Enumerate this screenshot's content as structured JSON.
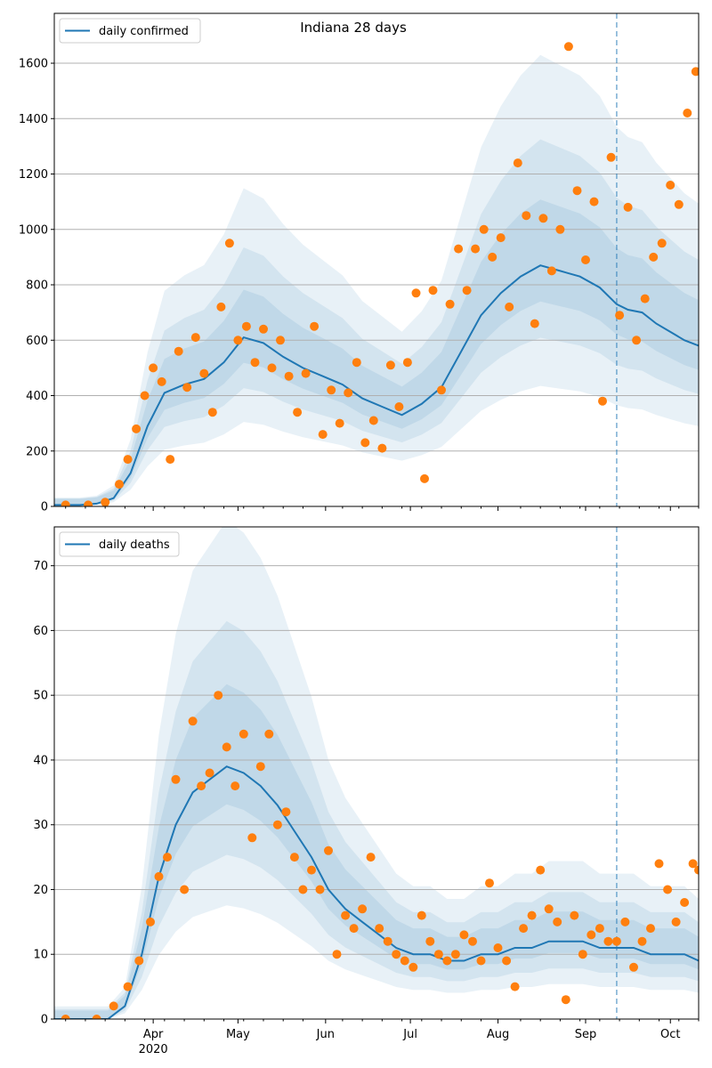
{
  "chart_data": [
    {
      "type": "line",
      "title": "Indiana 28 days",
      "xlabel": "",
      "ylabel": "",
      "ylim": [
        0,
        1780
      ],
      "y_ticks": [
        0,
        200,
        400,
        600,
        800,
        1000,
        1200,
        1400,
        1600
      ],
      "grid": "horizontal",
      "legend_placement": "top-left",
      "forecast_start": "2020-09-12",
      "band_color": "#1f77b4",
      "series": [
        {
          "name": "daily confirmed",
          "kind": "line",
          "color": "#1f77b4",
          "x": [
            "2020-02-26",
            "2020-03-06",
            "2020-03-12",
            "2020-03-18",
            "2020-03-24",
            "2020-03-30",
            "2020-04-05",
            "2020-04-12",
            "2020-04-19",
            "2020-04-26",
            "2020-05-03",
            "2020-05-10",
            "2020-05-17",
            "2020-05-24",
            "2020-05-31",
            "2020-06-07",
            "2020-06-14",
            "2020-06-21",
            "2020-06-28",
            "2020-07-05",
            "2020-07-12",
            "2020-07-19",
            "2020-07-26",
            "2020-08-02",
            "2020-08-09",
            "2020-08-16",
            "2020-08-23",
            "2020-08-30",
            "2020-09-06",
            "2020-09-12",
            "2020-09-16",
            "2020-09-21",
            "2020-09-26",
            "2020-10-01",
            "2020-10-06",
            "2020-10-11"
          ],
          "y": [
            5,
            5,
            10,
            30,
            120,
            290,
            410,
            440,
            460,
            520,
            610,
            590,
            540,
            500,
            470,
            440,
            390,
            360,
            330,
            370,
            430,
            560,
            690,
            770,
            830,
            870,
            850,
            830,
            790,
            730,
            710,
            700,
            660,
            630,
            600,
            580
          ]
        },
        {
          "name": "",
          "kind": "scatter",
          "color": "#ff7f0e",
          "x": [
            "2020-03-01",
            "2020-03-09",
            "2020-03-15",
            "2020-03-20",
            "2020-03-23",
            "2020-03-26",
            "2020-03-29",
            "2020-04-01",
            "2020-04-04",
            "2020-04-07",
            "2020-04-10",
            "2020-04-13",
            "2020-04-16",
            "2020-04-19",
            "2020-04-22",
            "2020-04-25",
            "2020-04-28",
            "2020-05-01",
            "2020-05-04",
            "2020-05-07",
            "2020-05-10",
            "2020-05-13",
            "2020-05-16",
            "2020-05-19",
            "2020-05-22",
            "2020-05-25",
            "2020-05-28",
            "2020-05-31",
            "2020-06-03",
            "2020-06-06",
            "2020-06-09",
            "2020-06-12",
            "2020-06-15",
            "2020-06-18",
            "2020-06-21",
            "2020-06-24",
            "2020-06-27",
            "2020-06-30",
            "2020-07-03",
            "2020-07-06",
            "2020-07-09",
            "2020-07-12",
            "2020-07-15",
            "2020-07-18",
            "2020-07-21",
            "2020-07-24",
            "2020-07-27",
            "2020-07-30",
            "2020-08-02",
            "2020-08-05",
            "2020-08-08",
            "2020-08-11",
            "2020-08-14",
            "2020-08-17",
            "2020-08-20",
            "2020-08-23",
            "2020-08-26",
            "2020-08-29",
            "2020-09-01",
            "2020-09-04",
            "2020-09-07",
            "2020-09-10",
            "2020-09-13",
            "2020-09-16",
            "2020-09-19",
            "2020-09-22",
            "2020-09-25",
            "2020-09-28",
            "2020-10-01",
            "2020-10-04",
            "2020-10-07",
            "2020-10-10"
          ],
          "y": [
            5,
            5,
            15,
            80,
            170,
            280,
            400,
            500,
            450,
            170,
            560,
            430,
            610,
            480,
            340,
            720,
            950,
            600,
            650,
            520,
            640,
            500,
            600,
            470,
            340,
            480,
            650,
            260,
            420,
            300,
            410,
            520,
            230,
            310,
            210,
            510,
            360,
            520,
            770,
            100,
            780,
            420,
            730,
            930,
            780,
            930,
            1000,
            900,
            970,
            720,
            1240,
            1050,
            660,
            1040,
            850,
            1000,
            1660,
            1140,
            890,
            1100,
            380,
            1260,
            690,
            1080,
            600,
            750,
            900,
            950,
            1160,
            1090,
            1420,
            1570
          ]
        }
      ]
    },
    {
      "type": "line",
      "title": "",
      "xlabel": "",
      "ylabel": "",
      "ylim": [
        0,
        76
      ],
      "y_ticks": [
        0,
        10,
        20,
        30,
        40,
        50,
        60,
        70
      ],
      "grid": "horizontal",
      "legend_placement": "top-left",
      "forecast_start": "2020-09-12",
      "band_color": "#1f77b4",
      "x_tick_labels": [
        "Apr",
        "2020",
        "May",
        "Jun",
        "Jul",
        "Aug",
        "Sep",
        "Oct"
      ],
      "series": [
        {
          "name": "daily deaths",
          "kind": "line",
          "color": "#1f77b4",
          "x": [
            "2020-02-26",
            "2020-03-10",
            "2020-03-16",
            "2020-03-22",
            "2020-03-28",
            "2020-04-03",
            "2020-04-09",
            "2020-04-15",
            "2020-04-21",
            "2020-04-27",
            "2020-05-03",
            "2020-05-09",
            "2020-05-15",
            "2020-05-21",
            "2020-05-27",
            "2020-06-02",
            "2020-06-08",
            "2020-06-14",
            "2020-06-20",
            "2020-06-26",
            "2020-07-02",
            "2020-07-08",
            "2020-07-14",
            "2020-07-20",
            "2020-07-26",
            "2020-08-01",
            "2020-08-07",
            "2020-08-13",
            "2020-08-19",
            "2020-08-25",
            "2020-08-31",
            "2020-09-06",
            "2020-09-12",
            "2020-09-18",
            "2020-09-24",
            "2020-09-30",
            "2020-10-06",
            "2020-10-11"
          ],
          "y": [
            0,
            0,
            0,
            2,
            10,
            22,
            30,
            35,
            37,
            39,
            38,
            36,
            33,
            29,
            25,
            20,
            17,
            15,
            13,
            11,
            10,
            10,
            9,
            9,
            10,
            10,
            11,
            11,
            12,
            12,
            12,
            11,
            11,
            11,
            10,
            10,
            10,
            9
          ]
        },
        {
          "name": "",
          "kind": "scatter",
          "color": "#ff7f0e",
          "x": [
            "2020-03-01",
            "2020-03-12",
            "2020-03-18",
            "2020-03-23",
            "2020-03-27",
            "2020-03-31",
            "2020-04-03",
            "2020-04-06",
            "2020-04-09",
            "2020-04-12",
            "2020-04-15",
            "2020-04-18",
            "2020-04-21",
            "2020-04-24",
            "2020-04-27",
            "2020-04-30",
            "2020-05-03",
            "2020-05-06",
            "2020-05-09",
            "2020-05-12",
            "2020-05-15",
            "2020-05-18",
            "2020-05-21",
            "2020-05-24",
            "2020-05-27",
            "2020-05-30",
            "2020-06-02",
            "2020-06-05",
            "2020-06-08",
            "2020-06-11",
            "2020-06-14",
            "2020-06-17",
            "2020-06-20",
            "2020-06-23",
            "2020-06-26",
            "2020-06-29",
            "2020-07-02",
            "2020-07-05",
            "2020-07-08",
            "2020-07-11",
            "2020-07-14",
            "2020-07-17",
            "2020-07-20",
            "2020-07-23",
            "2020-07-26",
            "2020-07-29",
            "2020-08-01",
            "2020-08-04",
            "2020-08-07",
            "2020-08-10",
            "2020-08-13",
            "2020-08-16",
            "2020-08-19",
            "2020-08-22",
            "2020-08-25",
            "2020-08-28",
            "2020-08-31",
            "2020-09-03",
            "2020-09-06",
            "2020-09-09",
            "2020-09-12",
            "2020-09-15",
            "2020-09-18",
            "2020-09-21",
            "2020-09-24",
            "2020-09-27",
            "2020-09-30",
            "2020-10-03",
            "2020-10-06",
            "2020-10-09",
            "2020-10-11"
          ],
          "y": [
            0,
            0,
            2,
            5,
            9,
            15,
            22,
            25,
            37,
            20,
            46,
            36,
            38,
            50,
            42,
            36,
            44,
            28,
            39,
            44,
            30,
            32,
            25,
            20,
            23,
            20,
            26,
            10,
            16,
            14,
            17,
            25,
            14,
            12,
            10,
            9,
            8,
            16,
            12,
            10,
            9,
            10,
            13,
            12,
            9,
            21,
            11,
            9,
            5,
            14,
            16,
            23,
            17,
            15,
            3,
            16,
            10,
            13,
            14,
            12,
            12,
            15,
            8,
            12,
            14,
            24,
            20,
            15,
            18,
            24,
            23
          ]
        }
      ]
    }
  ]
}
